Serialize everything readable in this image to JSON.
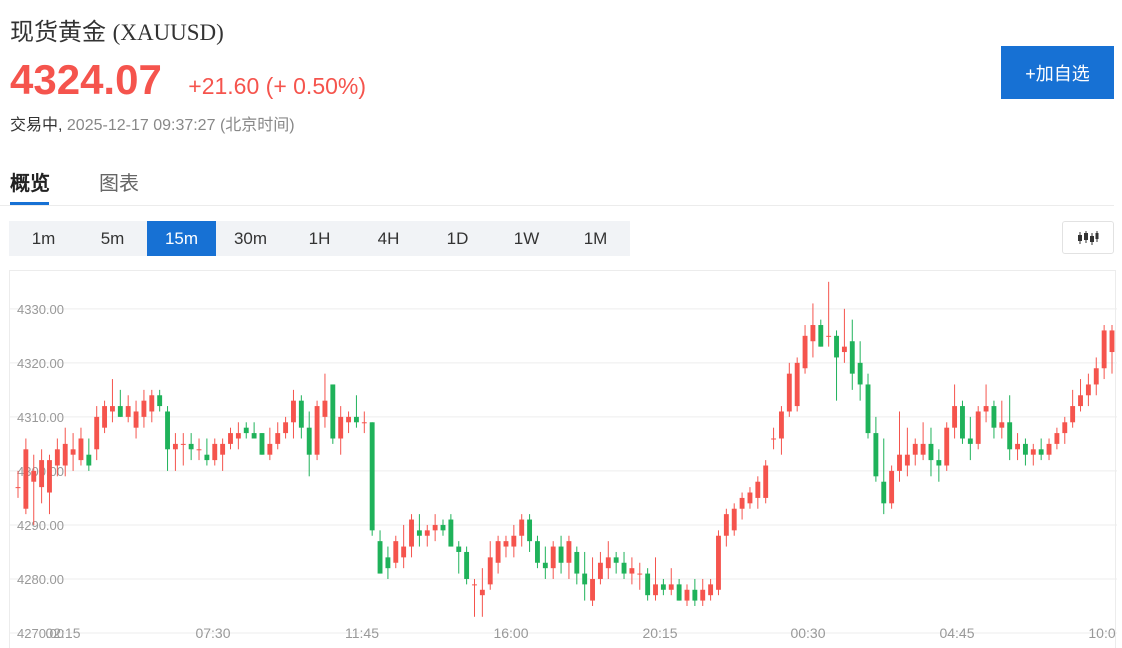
{
  "header": {
    "name": "现货黄金",
    "code": "(XAUUSD)",
    "price": "4324.07",
    "change": "+21.60 (+ 0.50%)",
    "status": "交易中,",
    "timestamp": "2025-12-17 09:37:27",
    "timezone": "(北京时间)",
    "add_watch_label": "+加自选"
  },
  "tabs": [
    {
      "label": "概览",
      "active": true
    },
    {
      "label": "图表",
      "active": false
    }
  ],
  "intervals": [
    {
      "label": "1m"
    },
    {
      "label": "5m"
    },
    {
      "label": "15m",
      "active": true
    },
    {
      "label": "30m"
    },
    {
      "label": "1H"
    },
    {
      "label": "4H"
    },
    {
      "label": "1D"
    },
    {
      "label": "1W"
    },
    {
      "label": "1M"
    }
  ],
  "chart_type_icon": "candlestick-icon",
  "colors": {
    "up": "#f5544d",
    "down": "#1fb25a",
    "accent": "#1771d4",
    "grid": "#ededed",
    "axis_text": "#999999"
  },
  "chart_data": {
    "type": "candlestick",
    "ylim": [
      4270,
      4337
    ],
    "yticks": [
      "4330.00",
      "4320.00",
      "4310.00",
      "4300.00",
      "4290.00",
      "4280.00",
      "4270.00"
    ],
    "ytick_values": [
      4330,
      4320,
      4310,
      4300,
      4290,
      4280,
      4270
    ],
    "xticks": [
      "02:15",
      "07:30",
      "11:45",
      "16:00",
      "20:15",
      "00:30",
      "04:45",
      "10:0"
    ],
    "grid": true,
    "candles": [
      {
        "o": 4297,
        "h": 4300,
        "l": 4295,
        "c": 4297
      },
      {
        "o": 4293,
        "h": 4306,
        "l": 4292,
        "c": 4304
      },
      {
        "o": 4298,
        "h": 4303,
        "l": 4290,
        "c": 4300
      },
      {
        "o": 4297,
        "h": 4304,
        "l": 4294,
        "c": 4302
      },
      {
        "o": 4296,
        "h": 4303,
        "l": 4292,
        "c": 4302
      },
      {
        "o": 4301,
        "h": 4306,
        "l": 4299,
        "c": 4304
      },
      {
        "o": 4301,
        "h": 4308,
        "l": 4299,
        "c": 4305
      },
      {
        "o": 4303,
        "h": 4307,
        "l": 4300,
        "c": 4304
      },
      {
        "o": 4302,
        "h": 4308,
        "l": 4301,
        "c": 4306
      },
      {
        "o": 4303,
        "h": 4306,
        "l": 4300,
        "c": 4301
      },
      {
        "o": 4304,
        "h": 4312,
        "l": 4302,
        "c": 4310
      },
      {
        "o": 4308,
        "h": 4313,
        "l": 4307,
        "c": 4312
      },
      {
        "o": 4311,
        "h": 4317,
        "l": 4309,
        "c": 4312
      },
      {
        "o": 4312,
        "h": 4315,
        "l": 4310,
        "c": 4310
      },
      {
        "o": 4310,
        "h": 4314,
        "l": 4309,
        "c": 4312
      },
      {
        "o": 4308,
        "h": 4313,
        "l": 4306,
        "c": 4311
      },
      {
        "o": 4310,
        "h": 4315,
        "l": 4308,
        "c": 4313
      },
      {
        "o": 4311,
        "h": 4315,
        "l": 4309,
        "c": 4314
      },
      {
        "o": 4314,
        "h": 4315,
        "l": 4311,
        "c": 4312
      },
      {
        "o": 4311,
        "h": 4312,
        "l": 4300,
        "c": 4304
      },
      {
        "o": 4304,
        "h": 4307,
        "l": 4300,
        "c": 4305
      },
      {
        "o": 4305,
        "h": 4307,
        "l": 4301,
        "c": 4305
      },
      {
        "o": 4305,
        "h": 4307,
        "l": 4302,
        "c": 4304
      },
      {
        "o": 4304,
        "h": 4306,
        "l": 4302,
        "c": 4304
      },
      {
        "o": 4303,
        "h": 4306,
        "l": 4301,
        "c": 4302
      },
      {
        "o": 4302,
        "h": 4306,
        "l": 4301,
        "c": 4305
      },
      {
        "o": 4303,
        "h": 4306,
        "l": 4300,
        "c": 4305
      },
      {
        "o": 4305,
        "h": 4308,
        "l": 4304,
        "c": 4307
      },
      {
        "o": 4306,
        "h": 4309,
        "l": 4304,
        "c": 4307
      },
      {
        "o": 4308,
        "h": 4309,
        "l": 4306,
        "c": 4307
      },
      {
        "o": 4307,
        "h": 4309,
        "l": 4306,
        "c": 4306
      },
      {
        "o": 4307,
        "h": 4307,
        "l": 4303,
        "c": 4303
      },
      {
        "o": 4303,
        "h": 4308,
        "l": 4302,
        "c": 4305
      },
      {
        "o": 4305,
        "h": 4309,
        "l": 4304,
        "c": 4307
      },
      {
        "o": 4307,
        "h": 4310,
        "l": 4306,
        "c": 4309
      },
      {
        "o": 4309,
        "h": 4315,
        "l": 4306,
        "c": 4313
      },
      {
        "o": 4313,
        "h": 4314,
        "l": 4306,
        "c": 4308
      },
      {
        "o": 4308,
        "h": 4311,
        "l": 4299,
        "c": 4303
      },
      {
        "o": 4303,
        "h": 4313,
        "l": 4302,
        "c": 4312
      },
      {
        "o": 4310,
        "h": 4318,
        "l": 4308,
        "c": 4313
      },
      {
        "o": 4316,
        "h": 4316,
        "l": 4305,
        "c": 4306
      },
      {
        "o": 4306,
        "h": 4312,
        "l": 4303,
        "c": 4310
      },
      {
        "o": 4309,
        "h": 4311,
        "l": 4307,
        "c": 4310
      },
      {
        "o": 4310,
        "h": 4314,
        "l": 4308,
        "c": 4309
      },
      {
        "o": 4309,
        "h": 4311,
        "l": 4307,
        "c": 4309
      },
      {
        "o": 4309,
        "h": 4309,
        "l": 4288,
        "c": 4289
      },
      {
        "o": 4287,
        "h": 4289,
        "l": 4281,
        "c": 4281
      },
      {
        "o": 4284,
        "h": 4286,
        "l": 4280,
        "c": 4282
      },
      {
        "o": 4283,
        "h": 4288,
        "l": 4282,
        "c": 4287
      },
      {
        "o": 4284,
        "h": 4290,
        "l": 4282,
        "c": 4286
      },
      {
        "o": 4286,
        "h": 4292,
        "l": 4284,
        "c": 4291
      },
      {
        "o": 4289,
        "h": 4292,
        "l": 4286,
        "c": 4288
      },
      {
        "o": 4288,
        "h": 4290,
        "l": 4286,
        "c": 4289
      },
      {
        "o": 4289,
        "h": 4292,
        "l": 4287,
        "c": 4290
      },
      {
        "o": 4290,
        "h": 4291,
        "l": 4288,
        "c": 4289
      },
      {
        "o": 4291,
        "h": 4292,
        "l": 4286,
        "c": 4286
      },
      {
        "o": 4286,
        "h": 4287,
        "l": 4281,
        "c": 4285
      },
      {
        "o": 4285,
        "h": 4286,
        "l": 4279,
        "c": 4280
      },
      {
        "o": 4279,
        "h": 4280,
        "l": 4273,
        "c": 4279
      },
      {
        "o": 4277,
        "h": 4282,
        "l": 4273,
        "c": 4278
      },
      {
        "o": 4279,
        "h": 4287,
        "l": 4278,
        "c": 4284
      },
      {
        "o": 4283,
        "h": 4288,
        "l": 4281,
        "c": 4287
      },
      {
        "o": 4286,
        "h": 4288,
        "l": 4284,
        "c": 4287
      },
      {
        "o": 4286,
        "h": 4290,
        "l": 4284,
        "c": 4288
      },
      {
        "o": 4288,
        "h": 4292,
        "l": 4286,
        "c": 4291
      },
      {
        "o": 4291,
        "h": 4292,
        "l": 4285,
        "c": 4287
      },
      {
        "o": 4287,
        "h": 4288,
        "l": 4282,
        "c": 4283
      },
      {
        "o": 4283,
        "h": 4286,
        "l": 4280,
        "c": 4282
      },
      {
        "o": 4282,
        "h": 4287,
        "l": 4280,
        "c": 4286
      },
      {
        "o": 4286,
        "h": 4288,
        "l": 4281,
        "c": 4283
      },
      {
        "o": 4283,
        "h": 4288,
        "l": 4280,
        "c": 4287
      },
      {
        "o": 4285,
        "h": 4286,
        "l": 4279,
        "c": 4281
      },
      {
        "o": 4281,
        "h": 4285,
        "l": 4276,
        "c": 4279
      },
      {
        "o": 4276,
        "h": 4284,
        "l": 4275,
        "c": 4280
      },
      {
        "o": 4280,
        "h": 4285,
        "l": 4279,
        "c": 4283
      },
      {
        "o": 4282,
        "h": 4287,
        "l": 4280,
        "c": 4284
      },
      {
        "o": 4284,
        "h": 4285,
        "l": 4281,
        "c": 4283
      },
      {
        "o": 4283,
        "h": 4285,
        "l": 4280,
        "c": 4281
      },
      {
        "o": 4281,
        "h": 4284,
        "l": 4279,
        "c": 4282
      },
      {
        "o": 4281,
        "h": 4283,
        "l": 4278,
        "c": 4281
      },
      {
        "o": 4281,
        "h": 4282,
        "l": 4276,
        "c": 4277
      },
      {
        "o": 4277,
        "h": 4284,
        "l": 4276,
        "c": 4279
      },
      {
        "o": 4279,
        "h": 4280,
        "l": 4277,
        "c": 4278
      },
      {
        "o": 4278,
        "h": 4282,
        "l": 4277,
        "c": 4279
      },
      {
        "o": 4279,
        "h": 4280,
        "l": 4276,
        "c": 4276
      },
      {
        "o": 4276,
        "h": 4279,
        "l": 4275,
        "c": 4278
      },
      {
        "o": 4278,
        "h": 4280,
        "l": 4275,
        "c": 4276
      },
      {
        "o": 4276,
        "h": 4280,
        "l": 4275,
        "c": 4278
      },
      {
        "o": 4277,
        "h": 4280,
        "l": 4276,
        "c": 4279
      },
      {
        "o": 4278,
        "h": 4289,
        "l": 4277,
        "c": 4288
      },
      {
        "o": 4288,
        "h": 4293,
        "l": 4286,
        "c": 4292
      },
      {
        "o": 4289,
        "h": 4294,
        "l": 4288,
        "c": 4293
      },
      {
        "o": 4293,
        "h": 4296,
        "l": 4291,
        "c": 4295
      },
      {
        "o": 4294,
        "h": 4297,
        "l": 4293,
        "c": 4296
      },
      {
        "o": 4295,
        "h": 4299,
        "l": 4293,
        "c": 4298
      },
      {
        "o": 4295,
        "h": 4302,
        "l": 4294,
        "c": 4301
      },
      {
        "o": 4306,
        "h": 4308,
        "l": 4304,
        "c": 4306
      },
      {
        "o": 4306,
        "h": 4312,
        "l": 4303,
        "c": 4311
      },
      {
        "o": 4311,
        "h": 4320,
        "l": 4310,
        "c": 4318
      },
      {
        "o": 4312,
        "h": 4321,
        "l": 4311,
        "c": 4320
      },
      {
        "o": 4319,
        "h": 4327,
        "l": 4318,
        "c": 4325
      },
      {
        "o": 4324,
        "h": 4331,
        "l": 4321,
        "c": 4327
      },
      {
        "o": 4327,
        "h": 4328,
        "l": 4323,
        "c": 4323
      },
      {
        "o": 4325,
        "h": 4335,
        "l": 4323,
        "c": 4325
      },
      {
        "o": 4325,
        "h": 4326,
        "l": 4313,
        "c": 4321
      },
      {
        "o": 4322,
        "h": 4330,
        "l": 4320,
        "c": 4323
      },
      {
        "o": 4324,
        "h": 4328,
        "l": 4315,
        "c": 4318
      },
      {
        "o": 4320,
        "h": 4324,
        "l": 4313,
        "c": 4316
      },
      {
        "o": 4316,
        "h": 4318,
        "l": 4306,
        "c": 4307
      },
      {
        "o": 4307,
        "h": 4310,
        "l": 4298,
        "c": 4299
      },
      {
        "o": 4298,
        "h": 4306,
        "l": 4292,
        "c": 4294
      },
      {
        "o": 4294,
        "h": 4301,
        "l": 4293,
        "c": 4300
      },
      {
        "o": 4300,
        "h": 4311,
        "l": 4298,
        "c": 4303
      },
      {
        "o": 4301,
        "h": 4308,
        "l": 4299,
        "c": 4303
      },
      {
        "o": 4303,
        "h": 4306,
        "l": 4301,
        "c": 4305
      },
      {
        "o": 4303,
        "h": 4309,
        "l": 4302,
        "c": 4305
      },
      {
        "o": 4305,
        "h": 4308,
        "l": 4299,
        "c": 4302
      },
      {
        "o": 4302,
        "h": 4304,
        "l": 4298,
        "c": 4301
      },
      {
        "o": 4301,
        "h": 4309,
        "l": 4300,
        "c": 4308
      },
      {
        "o": 4308,
        "h": 4316,
        "l": 4306,
        "c": 4312
      },
      {
        "o": 4312,
        "h": 4313,
        "l": 4305,
        "c": 4306
      },
      {
        "o": 4306,
        "h": 4310,
        "l": 4302,
        "c": 4305
      },
      {
        "o": 4305,
        "h": 4312,
        "l": 4304,
        "c": 4311
      },
      {
        "o": 4311,
        "h": 4316,
        "l": 4309,
        "c": 4312
      },
      {
        "o": 4312,
        "h": 4313,
        "l": 4306,
        "c": 4308
      },
      {
        "o": 4308,
        "h": 4313,
        "l": 4306,
        "c": 4309
      },
      {
        "o": 4309,
        "h": 4314,
        "l": 4302,
        "c": 4304
      },
      {
        "o": 4304,
        "h": 4307,
        "l": 4302,
        "c": 4305
      },
      {
        "o": 4305,
        "h": 4306,
        "l": 4301,
        "c": 4303
      },
      {
        "o": 4303,
        "h": 4305,
        "l": 4301,
        "c": 4304
      },
      {
        "o": 4304,
        "h": 4306,
        "l": 4302,
        "c": 4303
      },
      {
        "o": 4303,
        "h": 4306,
        "l": 4302,
        "c": 4305
      },
      {
        "o": 4305,
        "h": 4308,
        "l": 4304,
        "c": 4307
      },
      {
        "o": 4307,
        "h": 4310,
        "l": 4305,
        "c": 4309
      },
      {
        "o": 4309,
        "h": 4315,
        "l": 4308,
        "c": 4312
      },
      {
        "o": 4312,
        "h": 4317,
        "l": 4311,
        "c": 4314
      },
      {
        "o": 4314,
        "h": 4318,
        "l": 4312,
        "c": 4316
      },
      {
        "o": 4316,
        "h": 4321,
        "l": 4314,
        "c": 4319
      },
      {
        "o": 4319,
        "h": 4327,
        "l": 4317,
        "c": 4326
      },
      {
        "o": 4322,
        "h": 4327,
        "l": 4318,
        "c": 4326
      }
    ]
  }
}
